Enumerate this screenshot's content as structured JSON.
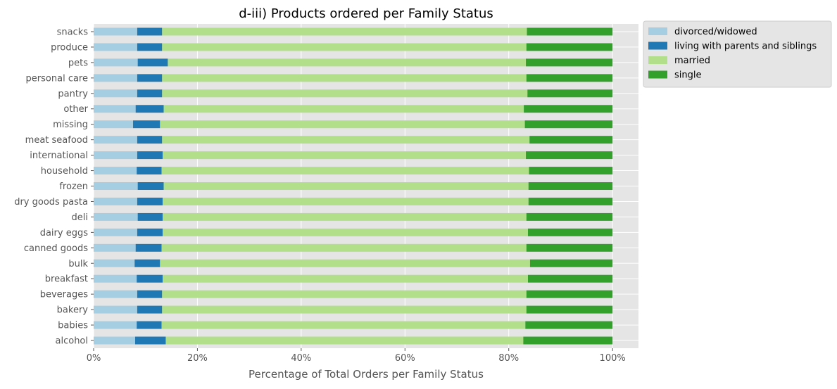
{
  "chart_data": {
    "type": "bar",
    "orientation": "horizontal",
    "stacked": true,
    "normalized": true,
    "title": "d-iii) Products ordered per Family Status",
    "xlabel": "Percentage of Total Orders per Family Status",
    "ylabel": "",
    "xlim": [
      0,
      105
    ],
    "xticks": [
      0,
      20,
      40,
      60,
      80,
      100
    ],
    "xtick_labels": [
      "0%",
      "20%",
      "40%",
      "60%",
      "80%",
      "100%"
    ],
    "grid": true,
    "legend_position": "outside-top-right",
    "categories": [
      "snacks",
      "produce",
      "pets",
      "personal care",
      "pantry",
      "other",
      "missing",
      "meat seafood",
      "international",
      "household",
      "frozen",
      "dry goods pasta",
      "deli",
      "dairy eggs",
      "canned goods",
      "bulk",
      "breakfast",
      "beverages",
      "bakery",
      "babies",
      "alcohol"
    ],
    "series": [
      {
        "name": "divorced/widowed",
        "color": "#a6cee3",
        "values": [
          8.4,
          8.4,
          8.5,
          8.4,
          8.4,
          8.1,
          7.6,
          8.4,
          8.4,
          8.3,
          8.5,
          8.4,
          8.5,
          8.4,
          8.1,
          7.9,
          8.3,
          8.4,
          8.4,
          8.3,
          8.0
        ]
      },
      {
        "name": "living with parents and siblings",
        "color": "#1f78b4",
        "values": [
          4.8,
          4.8,
          5.8,
          4.8,
          4.8,
          5.4,
          5.2,
          4.8,
          4.9,
          4.8,
          5.0,
          4.9,
          4.8,
          4.9,
          5.0,
          4.9,
          5.0,
          4.8,
          4.8,
          4.8,
          5.9
        ]
      },
      {
        "name": "married",
        "color": "#b2df8a",
        "values": [
          70.3,
          70.2,
          69.0,
          70.2,
          70.4,
          69.4,
          70.3,
          70.8,
          70.0,
          70.8,
          70.3,
          70.5,
          70.1,
          70.4,
          70.3,
          71.3,
          70.4,
          70.2,
          70.2,
          70.1,
          68.9
        ]
      },
      {
        "name": "single",
        "color": "#33a02c",
        "values": [
          16.5,
          16.6,
          16.7,
          16.6,
          16.4,
          17.1,
          16.9,
          16.0,
          16.7,
          16.1,
          16.2,
          16.2,
          16.6,
          16.3,
          16.6,
          15.9,
          16.3,
          16.6,
          16.6,
          16.8,
          17.2
        ]
      }
    ]
  },
  "style": {
    "axes_background": "#e5e5e5",
    "grid_color": "#ffffff",
    "tick_label_color": "#555555",
    "title_color": "#000000",
    "label_color": "#555555",
    "legend_background": "#e5e5e5",
    "legend_border": "#cccccc"
  }
}
